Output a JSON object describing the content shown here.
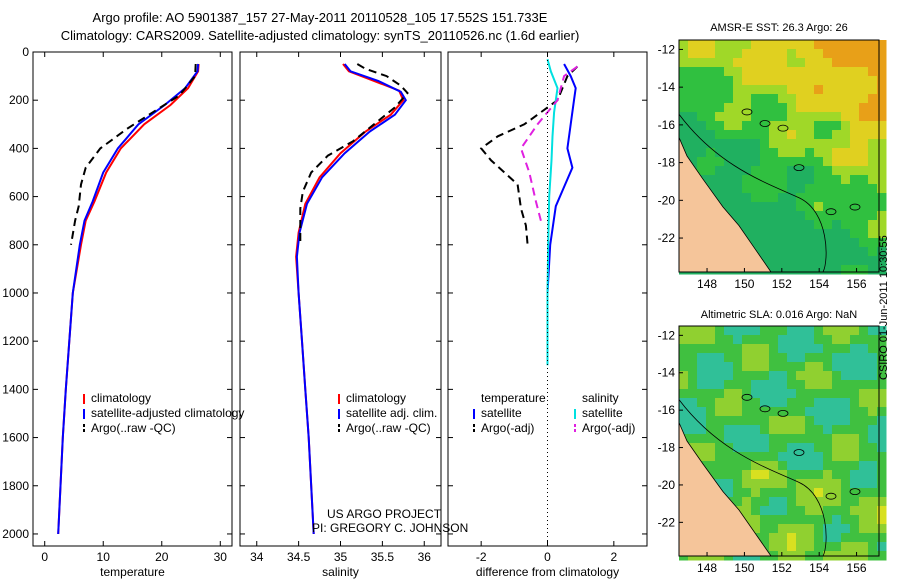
{
  "header": {
    "line1": "Argo profile: AO 5901387_157 27-May-2011 20110528_105 17.552S 151.733E",
    "line2": "Climatology: CARS2009. Satellite-adjusted climatology: synTS_20110526.nc (1.6d earlier)"
  },
  "footer": {
    "project": "US ARGO PROJECT",
    "pi": "PI: GREGORY C. JOHNSON",
    "stamp": "CSIRO 01-Jun-2011 10:30:55"
  },
  "colors": {
    "climatology": "#ff0000",
    "satellite": "#0000ff",
    "argo": "#000000",
    "satellite_salinity": "#00e0e0",
    "argo_adj_salinity": "#e020e0",
    "land": "#f5c59a"
  },
  "chart_data": [
    {
      "id": "temperature",
      "type": "line",
      "xlabel": "temperature",
      "ylabel": "",
      "xlim": [
        -2,
        32
      ],
      "ylim": [
        2050,
        0
      ],
      "xticks": [
        0,
        10,
        20,
        30
      ],
      "yticks": [
        0,
        200,
        400,
        600,
        800,
        1000,
        1200,
        1400,
        1600,
        1800,
        2000
      ],
      "legend": {
        "position": "bottom-left",
        "entries": [
          "climatology",
          "satellite-adjusted climatology",
          "Argo(..raw -QC)"
        ]
      },
      "series": [
        {
          "name": "climatology",
          "color": "#ff0000",
          "points": [
            [
              26.3,
              50
            ],
            [
              26.2,
              80
            ],
            [
              24.5,
              150
            ],
            [
              21.5,
              220
            ],
            [
              17,
              300
            ],
            [
              13,
              400
            ],
            [
              10.5,
              500
            ],
            [
              8.5,
              620
            ],
            [
              7,
              700
            ],
            [
              6.2,
              800
            ],
            [
              5.5,
              900
            ],
            [
              4.8,
              1000
            ],
            [
              4.2,
              1200
            ],
            [
              3.6,
              1400
            ],
            [
              3.1,
              1600
            ],
            [
              2.7,
              1800
            ],
            [
              2.3,
              2000
            ]
          ]
        },
        {
          "name": "satellite-adjusted climatology",
          "color": "#0000ff",
          "points": [
            [
              26.2,
              50
            ],
            [
              26.1,
              80
            ],
            [
              24,
              150
            ],
            [
              20.5,
              220
            ],
            [
              16,
              300
            ],
            [
              12.5,
              400
            ],
            [
              10,
              500
            ],
            [
              8.2,
              620
            ],
            [
              6.8,
              700
            ],
            [
              6,
              800
            ],
            [
              5.4,
              900
            ],
            [
              4.8,
              1000
            ],
            [
              4.2,
              1200
            ],
            [
              3.6,
              1400
            ],
            [
              3.1,
              1600
            ],
            [
              2.7,
              1800
            ],
            [
              2.3,
              2000
            ]
          ]
        },
        {
          "name": "Argo(..raw -QC)",
          "color": "#000000",
          "dash": true,
          "points": [
            [
              25.8,
              50
            ],
            [
              25.7,
              100
            ],
            [
              23,
              180
            ],
            [
              18.5,
              250
            ],
            [
              14,
              320
            ],
            [
              9.5,
              400
            ],
            [
              7,
              480
            ],
            [
              6.2,
              550
            ],
            [
              5.8,
              640
            ],
            [
              5.2,
              700
            ],
            [
              4.5,
              800
            ]
          ]
        }
      ]
    },
    {
      "id": "salinity",
      "type": "line",
      "xlabel": "salinity",
      "ylabel": "",
      "xlim": [
        33.8,
        36.2
      ],
      "ylim": [
        2050,
        0
      ],
      "xticks": [
        34,
        34.5,
        35,
        35.5,
        36
      ],
      "yticks": [
        0,
        200,
        400,
        600,
        800,
        1000,
        1200,
        1400,
        1600,
        1800,
        2000
      ],
      "legend": {
        "position": "bottom-right",
        "entries": [
          "climatology",
          "satellite adj. clim.",
          "Argo(..raw -QC)"
        ]
      },
      "series": [
        {
          "name": "climatology",
          "color": "#ff0000",
          "points": [
            [
              35.03,
              50
            ],
            [
              35.1,
              80
            ],
            [
              35.4,
              120
            ],
            [
              35.7,
              160
            ],
            [
              35.75,
              200
            ],
            [
              35.6,
              260
            ],
            [
              35.3,
              330
            ],
            [
              35,
              420
            ],
            [
              34.75,
              520
            ],
            [
              34.58,
              630
            ],
            [
              34.5,
              750
            ],
            [
              34.47,
              850
            ],
            [
              34.5,
              1000
            ],
            [
              34.54,
              1200
            ],
            [
              34.58,
              1400
            ],
            [
              34.62,
              1600
            ],
            [
              34.65,
              1800
            ],
            [
              34.68,
              2000
            ]
          ]
        },
        {
          "name": "satellite adj. clim.",
          "color": "#0000ff",
          "points": [
            [
              35.05,
              50
            ],
            [
              35.12,
              80
            ],
            [
              35.45,
              120
            ],
            [
              35.72,
              165
            ],
            [
              35.78,
              200
            ],
            [
              35.65,
              260
            ],
            [
              35.35,
              330
            ],
            [
              35.05,
              420
            ],
            [
              34.78,
              520
            ],
            [
              34.6,
              630
            ],
            [
              34.51,
              750
            ],
            [
              34.48,
              850
            ],
            [
              34.5,
              1000
            ],
            [
              34.54,
              1200
            ],
            [
              34.58,
              1400
            ],
            [
              34.62,
              1600
            ],
            [
              34.65,
              1800
            ],
            [
              34.68,
              2000
            ]
          ]
        },
        {
          "name": "Argo(..raw -QC)",
          "color": "#000000",
          "dash": true,
          "points": [
            [
              35.2,
              50
            ],
            [
              35.3,
              70
            ],
            [
              35.55,
              100
            ],
            [
              35.72,
              140
            ],
            [
              35.8,
              170
            ],
            [
              35.65,
              230
            ],
            [
              35.4,
              300
            ],
            [
              35.15,
              370
            ],
            [
              34.85,
              430
            ],
            [
              34.65,
              500
            ],
            [
              34.55,
              580
            ],
            [
              34.52,
              650
            ],
            [
              34.52,
              730
            ],
            [
              34.52,
              800
            ]
          ]
        }
      ]
    },
    {
      "id": "difference",
      "type": "line",
      "xlabel": "difference from climatology",
      "ylabel": "",
      "xlim": [
        -3,
        3
      ],
      "ylim": [
        2050,
        0
      ],
      "xticks": [
        -2,
        0,
        2
      ],
      "yticks": [
        0,
        200,
        400,
        600,
        800,
        1000,
        1200,
        1400,
        1600,
        1800,
        2000
      ],
      "legend": {
        "position": "bottom",
        "entries": [
          "temperature",
          "satellite",
          "Argo(-adj)",
          "salinity",
          "satellite",
          "Argo(-adj)"
        ]
      },
      "series": [
        {
          "name": "temperature satellite",
          "color": "#0000ff",
          "points": [
            [
              0.5,
              50
            ],
            [
              0.7,
              100
            ],
            [
              0.85,
              150
            ],
            [
              0.8,
              200
            ],
            [
              0.7,
              300
            ],
            [
              0.6,
              400
            ],
            [
              0.75,
              480
            ],
            [
              0.5,
              560
            ],
            [
              0.25,
              640
            ],
            [
              0.08,
              800
            ],
            [
              0,
              1000
            ]
          ]
        },
        {
          "name": "temperature Argo(-adj)",
          "color": "#000000",
          "dash": true,
          "points": [
            [
              0.9,
              60
            ],
            [
              0.6,
              100
            ],
            [
              0.3,
              200
            ],
            [
              -0.7,
              300
            ],
            [
              -1.5,
              350
            ],
            [
              -2,
              400
            ],
            [
              -1.7,
              450
            ],
            [
              -1.3,
              500
            ],
            [
              -0.9,
              550
            ],
            [
              -0.8,
              650
            ],
            [
              -0.65,
              720
            ],
            [
              -0.6,
              800
            ]
          ]
        },
        {
          "name": "salinity satellite",
          "color": "#00e0e0",
          "points": [
            [
              0,
              30
            ],
            [
              0.1,
              80
            ],
            [
              0.3,
              150
            ],
            [
              0.2,
              250
            ],
            [
              0.15,
              350
            ],
            [
              0.12,
              450
            ],
            [
              0.05,
              600
            ],
            [
              0.02,
              800
            ],
            [
              0.0,
              1000
            ],
            [
              0,
              1200
            ],
            [
              0,
              1300
            ]
          ]
        },
        {
          "name": "salinity Argo(-adj)",
          "color": "#e020e0",
          "dash": true,
          "points": [
            [
              0.9,
              60
            ],
            [
              0.5,
              100
            ],
            [
              0.3,
              200
            ],
            [
              -0.3,
              300
            ],
            [
              -0.8,
              400
            ],
            [
              -0.55,
              500
            ],
            [
              -0.35,
              620
            ],
            [
              -0.2,
              700
            ]
          ]
        }
      ]
    },
    {
      "id": "sst_map",
      "type": "heatmap",
      "title": "AMSR-E SST: 26.3 Argo: 26",
      "xlim": [
        146.5,
        157.2
      ],
      "ylim": [
        -23.8,
        -11.5
      ],
      "xticks": [
        148,
        150,
        152,
        154,
        156
      ],
      "yticks": [
        -12,
        -14,
        -16,
        -18,
        -20,
        -22
      ]
    },
    {
      "id": "sla_map",
      "type": "heatmap",
      "title": "Altimetric SLA: 0.016 Argo: NaN",
      "xlim": [
        146.5,
        157.2
      ],
      "ylim": [
        -23.8,
        -11.5
      ],
      "xticks": [
        148,
        150,
        152,
        154,
        156
      ],
      "yticks": [
        -12,
        -14,
        -16,
        -18,
        -20,
        -22
      ]
    }
  ]
}
